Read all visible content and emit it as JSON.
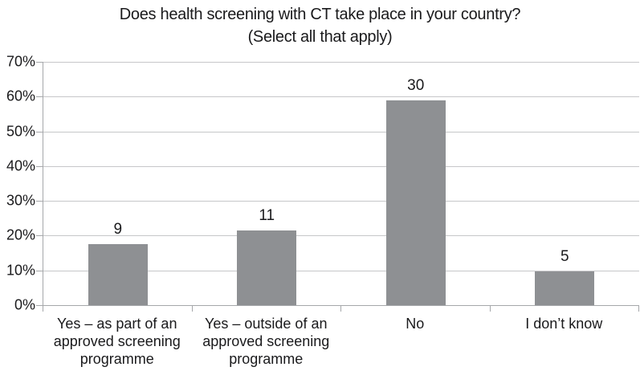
{
  "title": {
    "line1": "Does health screening with CT take place in your country?",
    "line2": "(Select all that apply)"
  },
  "chart_data": {
    "type": "bar",
    "title": "Does health screening with CT take place in your country? (Select all that apply)",
    "categories": [
      "Yes – as part of an approved screening programme",
      "Yes – outside of an approved screening programme",
      "No",
      "I don’t know"
    ],
    "category_lines": [
      [
        "Yes – as part of an",
        "approved screening",
        "programme"
      ],
      [
        "Yes – outside of an",
        "approved screening",
        "programme"
      ],
      [
        "No"
      ],
      [
        "I don’t know"
      ]
    ],
    "values": [
      9,
      11,
      30,
      5
    ],
    "data_labels": [
      "9",
      "11",
      "30",
      "5"
    ],
    "percentages": [
      17.6,
      21.6,
      58.8,
      9.8
    ],
    "xlabel": "",
    "ylabel": "",
    "ylim": [
      0,
      70
    ],
    "y_tick_values": [
      0,
      10,
      20,
      30,
      40,
      50,
      60,
      70
    ],
    "y_tick_labels": [
      "0%",
      "10%",
      "20%",
      "30%",
      "40%",
      "50%",
      "60%",
      "70%"
    ],
    "grid": "horizontal",
    "legend": "none",
    "bar_color": "#8e9093",
    "gridline_color": "#c6c7c9",
    "axis_color": "#a5a7aa",
    "text_color": "#1a1a1c"
  }
}
